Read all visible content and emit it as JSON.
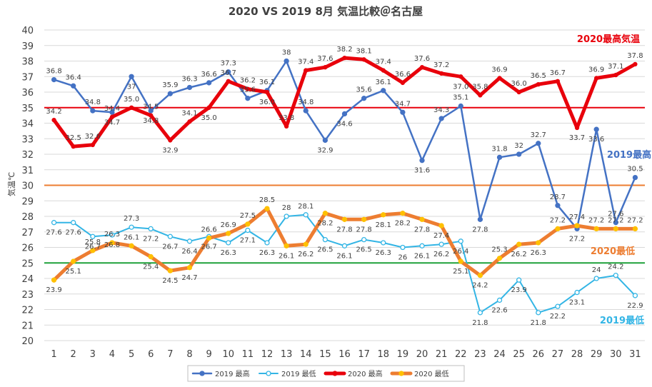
{
  "chart_data": {
    "type": "line",
    "title": "2020 VS 2019 8月 気温比較＠名古屋",
    "xlabel": "",
    "ylabel": "気温℃",
    "ylim": [
      20,
      40
    ],
    "yticks": [
      20,
      21,
      22,
      23,
      24,
      25,
      26,
      27,
      28,
      29,
      30,
      31,
      32,
      33,
      34,
      35,
      36,
      37,
      38,
      39,
      40
    ],
    "grid": true,
    "legend_position": "bottom",
    "categories": [
      "1",
      "2",
      "3",
      "4",
      "5",
      "6",
      "7",
      "8",
      "9",
      "10",
      "11",
      "12",
      "13",
      "14",
      "15",
      "16",
      "17",
      "18",
      "19",
      "20",
      "21",
      "22",
      "23",
      "24",
      "25",
      "26",
      "27",
      "28",
      "29",
      "30",
      "31"
    ],
    "series": [
      {
        "name": "2019 最高",
        "color": "#4472C4",
        "values": [
          36.8,
          36.4,
          34.8,
          34.7,
          37,
          34.8,
          35.9,
          36.3,
          36.6,
          37.3,
          35.6,
          36.1,
          38,
          34.8,
          32.9,
          34.6,
          35.6,
          36.1,
          34.7,
          31.6,
          34.3,
          35.1,
          27.8,
          31.8,
          32,
          32.7,
          28.7,
          27.2,
          33.6,
          27.6,
          30.5
        ],
        "labels": [
          "36.8",
          "36.4",
          "34.8",
          "34.7",
          "37",
          "34.8",
          "35.9",
          "36.3",
          "36.6",
          "37.3",
          "35.6",
          "36.1",
          "38",
          "34.8",
          "32.9",
          "34.6",
          "35.6",
          "36.1",
          "34.7",
          "31.6",
          "34.3",
          "35.1",
          "27.8",
          "31.8",
          "32",
          "32.7",
          "28.7",
          "27.2",
          "33.6",
          "27.6",
          "30.5"
        ]
      },
      {
        "name": "2019 最低",
        "color": "#33B5E5",
        "values": [
          27.6,
          27.6,
          26.7,
          26.8,
          27.3,
          27.2,
          26.7,
          26.4,
          26.7,
          26.3,
          27.1,
          26.3,
          28,
          28.1,
          26.5,
          26.1,
          26.5,
          26.3,
          26,
          26.1,
          26.2,
          26.4,
          21.8,
          22.6,
          23.9,
          21.8,
          22.2,
          23.1,
          24,
          24.2,
          22.9
        ],
        "labels": [
          "27.6",
          "27.6",
          "26.7",
          "26.8",
          "27.3",
          "27.2",
          "26.7",
          "26.4",
          "26.7",
          "26.3",
          "27.1",
          "26.3",
          "28",
          "28.1",
          "26.5",
          "26.1",
          "26.5",
          "26.3",
          "26",
          "26.1",
          "26.2",
          "26.4",
          "21.8",
          "22.6",
          "23.9",
          "21.8",
          "22.2",
          "23.1",
          "24",
          "24.2",
          "22.9"
        ]
      },
      {
        "name": "2020 最高",
        "color": "#E8000B",
        "values": [
          34.2,
          32.5,
          32.6,
          34.4,
          35.0,
          34.5,
          32.9,
          34.1,
          35.0,
          36.7,
          36.2,
          36.0,
          33.8,
          37.4,
          37.6,
          38.2,
          38.1,
          37.4,
          36.6,
          37.6,
          37.2,
          37.0,
          35.8,
          36.9,
          36.0,
          36.5,
          36.7,
          33.7,
          36.9,
          37.1,
          37.8
        ],
        "labels": [
          "34.2",
          "32.5",
          "32.6",
          "34.4",
          "35.0",
          "34.5",
          "32.9",
          "34.1",
          "35.0",
          "36.7",
          "36.2",
          "36.0",
          "33.8",
          "37.4",
          "37.6",
          "38.2",
          "38.1",
          "37.4",
          "36.6",
          "37.6",
          "37.2",
          "37.0",
          "35.8",
          "36.9",
          "36.0",
          "36.5",
          "36.7",
          "33.7",
          "36.9",
          "37.1",
          "37.8"
        ]
      },
      {
        "name": "2020 最低",
        "color": "#ED7D31",
        "values": [
          23.9,
          25.1,
          25.8,
          26.3,
          26.1,
          25.4,
          24.5,
          24.7,
          26.6,
          26.9,
          27.5,
          28.5,
          26.1,
          26.2,
          28.2,
          27.8,
          27.8,
          28.1,
          28.2,
          27.8,
          27.4,
          25.1,
          24.2,
          25.3,
          26.2,
          26.3,
          27.2,
          27.4,
          27.2,
          27.2,
          27.2
        ],
        "labels": [
          "23.9",
          "25.1",
          "25.8",
          "26.3",
          "26.1",
          "25.4",
          "24.5",
          "24.7",
          "26.6",
          "26.9",
          "27.5",
          "28.5",
          "26.1",
          "26.2",
          "28.2",
          "27.8",
          "27.8",
          "28.1",
          "28.2",
          "27.8",
          "27.4",
          "25.1",
          "24.2",
          "25.3",
          "26.2",
          "26.3",
          "27.2",
          "27.4",
          "27.2",
          "27.2",
          "27.2"
        ]
      }
    ],
    "reference_lines": [
      {
        "value": 35,
        "color": "#E8000B"
      },
      {
        "value": 30,
        "color": "#ED7D31"
      },
      {
        "value": 25,
        "color": "#1FA13A"
      }
    ],
    "annotations": [
      {
        "text": "2020最高気温",
        "color": "#E8000B"
      },
      {
        "text": "2019最高",
        "color": "#4472C4"
      },
      {
        "text": "2020最低",
        "color": "#ED7D31"
      },
      {
        "text": "2019最低",
        "color": "#33B5E5"
      }
    ]
  }
}
